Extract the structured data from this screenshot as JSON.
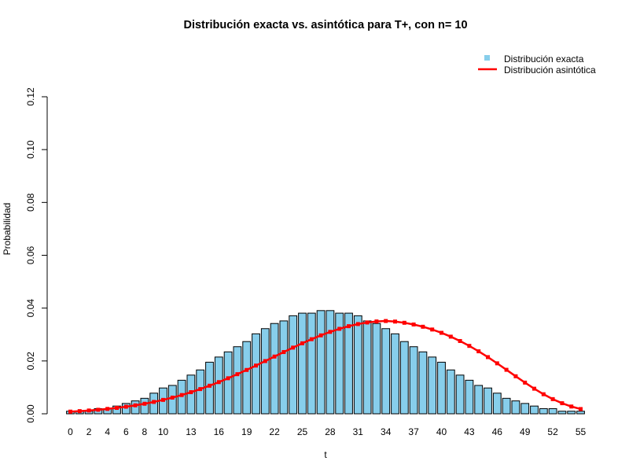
{
  "chart_data": {
    "type": "bar",
    "title": "Distribución exacta vs. asintótica para T+, con n= 10",
    "xlabel": "t",
    "ylabel": "Probabilidad",
    "ylim": [
      0,
      0.12
    ],
    "yticks": [
      "0.00",
      "0.02",
      "0.04",
      "0.06",
      "0.08",
      "0.10",
      "0.12"
    ],
    "xtick_labels": [
      "0",
      "2",
      "4",
      "6",
      "8",
      "10",
      "13",
      "16",
      "19",
      "22",
      "25",
      "28",
      "31",
      "34",
      "37",
      "40",
      "43",
      "46",
      "49",
      "52",
      "55"
    ],
    "x": [
      0,
      1,
      2,
      3,
      4,
      5,
      6,
      7,
      8,
      9,
      10,
      11,
      12,
      13,
      14,
      15,
      16,
      17,
      18,
      19,
      20,
      21,
      22,
      23,
      24,
      25,
      26,
      27,
      28,
      29,
      30,
      31,
      32,
      33,
      34,
      35,
      36,
      37,
      38,
      39,
      40,
      41,
      42,
      43,
      44,
      45,
      46,
      47,
      48,
      49,
      50,
      51,
      52,
      53,
      54,
      55
    ],
    "grid": false,
    "legend_position": "top-right",
    "series": [
      {
        "name": "Distribución exacta",
        "kind": "bar",
        "color": "#87CEEB",
        "values": [
          0.00098,
          0.00098,
          0.00098,
          0.00195,
          0.00195,
          0.00293,
          0.00391,
          0.00488,
          0.00586,
          0.00781,
          0.00977,
          0.01074,
          0.0127,
          0.01465,
          0.0166,
          0.01953,
          0.02148,
          0.02344,
          0.02539,
          0.02734,
          0.03027,
          0.03223,
          0.03418,
          0.03516,
          0.03711,
          0.03809,
          0.03809,
          0.03906,
          0.03906,
          0.03809,
          0.03809,
          0.03711,
          0.03516,
          0.03418,
          0.03223,
          0.03027,
          0.02734,
          0.02539,
          0.02344,
          0.02148,
          0.01953,
          0.0166,
          0.01465,
          0.0127,
          0.01074,
          0.00977,
          0.00781,
          0.00586,
          0.00488,
          0.00391,
          0.00293,
          0.00195,
          0.00195,
          0.00098,
          0.00098,
          0.00098
        ]
      },
      {
        "name": "Distribución asintótica",
        "kind": "line",
        "color": "#FF0000",
        "values": [
          0.00082,
          0.00101,
          0.00124,
          0.00152,
          0.00185,
          0.00223,
          0.00268,
          0.0032,
          0.0038,
          0.00449,
          0.00526,
          0.00613,
          0.0071,
          0.00818,
          0.00935,
          0.01062,
          0.01199,
          0.01345,
          0.01499,
          0.01659,
          0.01825,
          0.01995,
          0.02166,
          0.02337,
          0.02505,
          0.02668,
          0.02823,
          0.02968,
          0.031,
          0.03216,
          0.03316,
          0.03396,
          0.03456,
          0.03495,
          0.03512,
          0.0349,
          0.03445,
          0.0338,
          0.03295,
          0.0319,
          0.03065,
          0.0292,
          0.02755,
          0.0257,
          0.02365,
          0.02145,
          0.0191,
          0.01665,
          0.0142,
          0.0118,
          0.0095,
          0.0074,
          0.00555,
          0.004,
          0.00275,
          0.0018
        ]
      }
    ]
  }
}
